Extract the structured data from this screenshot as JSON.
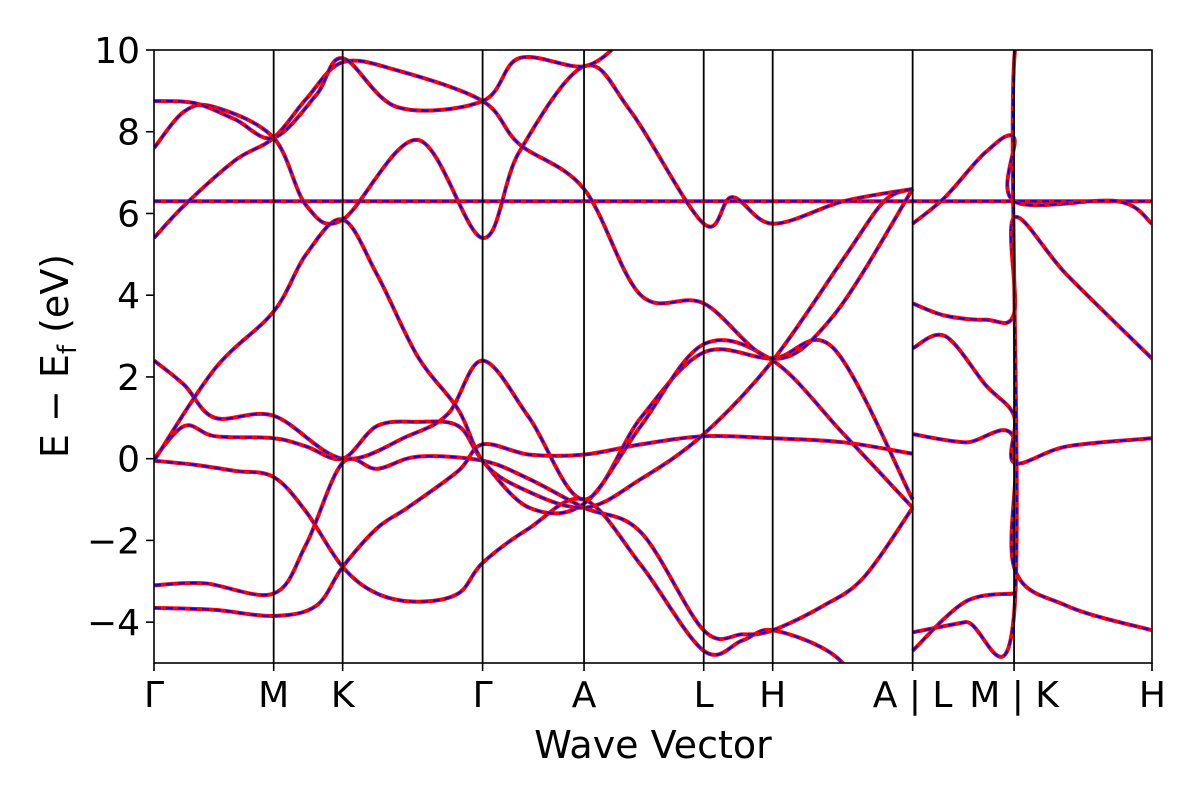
{
  "chart_data": {
    "type": "line",
    "title": "",
    "xlabel": "Wave Vector",
    "ylabel_main": "E − E",
    "ylabel_sub": "f",
    "ylabel_unit": " (eV)",
    "ylim": [
      -5,
      10
    ],
    "yticks": [
      -4,
      -2,
      0,
      2,
      4,
      6,
      8,
      10
    ],
    "ytick_labels": [
      "−4",
      "−2",
      "0",
      "2",
      "4",
      "6",
      "8",
      "10"
    ],
    "xticks": [
      0,
      1.18,
      1.86,
      3.24,
      4.24,
      5.42,
      6.1,
      7.48,
      8.48,
      9.84
    ],
    "xtick_labels": [
      "Γ",
      "M",
      "K",
      "Γ",
      "A",
      "L",
      "H",
      "A | L",
      "M | K",
      "H"
    ],
    "xlim": [
      0,
      9.84
    ],
    "grid": false,
    "legend": "none",
    "colors": {
      "primary": "#ff0000",
      "secondary": "#0000ff"
    },
    "series": [
      {
        "values": [
          [
            0,
            -0.05
          ],
          [
            0.4,
            -0.15
          ],
          [
            0.8,
            -0.3
          ],
          [
            1.18,
            -0.45
          ],
          [
            1.5,
            -1.3
          ],
          [
            1.86,
            -2.65
          ],
          [
            2.2,
            -3.3
          ],
          [
            2.6,
            -3.5
          ],
          [
            3.0,
            -3.3
          ],
          [
            3.24,
            -2.55
          ],
          [
            3.7,
            -1.7
          ],
          [
            4.24,
            -1.0
          ],
          [
            4.8,
            -2.6
          ],
          [
            5.42,
            -4.7
          ],
          [
            5.8,
            -4.45
          ],
          [
            6.1,
            -4.2
          ],
          [
            6.7,
            -4.8
          ],
          [
            7.1,
            -6.0
          ]
        ]
      },
      {
        "values": [
          [
            0,
            -3.1
          ],
          [
            0.5,
            -3.05
          ],
          [
            1.18,
            -3.3
          ],
          [
            1.5,
            -2.1
          ],
          [
            1.86,
            -0.1
          ],
          [
            2.2,
            -0.25
          ],
          [
            2.6,
            0.05
          ],
          [
            3.24,
            -0.05
          ],
          [
            3.7,
            -0.5
          ],
          [
            4.24,
            -1.2
          ],
          [
            4.8,
            -1.8
          ],
          [
            5.42,
            -4.2
          ],
          [
            5.8,
            -4.3
          ],
          [
            6.1,
            -4.2
          ],
          [
            6.6,
            -3.6
          ],
          [
            7.0,
            -2.9
          ],
          [
            7.48,
            -1.2
          ]
        ]
      },
      {
        "values": [
          [
            0,
            -3.65
          ],
          [
            0.6,
            -3.7
          ],
          [
            1.18,
            -3.85
          ],
          [
            1.6,
            -3.6
          ],
          [
            1.86,
            -2.65
          ],
          [
            2.2,
            -1.7
          ],
          [
            2.5,
            -1.2
          ],
          [
            3.0,
            -0.3
          ],
          [
            3.24,
            0.35
          ],
          [
            3.7,
            0.1
          ],
          [
            4.24,
            0.1
          ],
          [
            4.8,
            0.35
          ],
          [
            5.42,
            0.55
          ],
          [
            6.1,
            0.5
          ],
          [
            6.8,
            0.4
          ],
          [
            7.48,
            0.12
          ]
        ]
      },
      {
        "values": [
          [
            0,
            2.4
          ],
          [
            0.3,
            1.8
          ],
          [
            0.6,
            1.0
          ],
          [
            1.18,
            1.05
          ],
          [
            1.86,
            0.0
          ],
          [
            2.5,
            0.55
          ],
          [
            2.9,
            1.1
          ],
          [
            3.24,
            2.4
          ],
          [
            3.7,
            1.0
          ],
          [
            4.24,
            -1.0
          ],
          [
            4.8,
            1.0
          ],
          [
            5.42,
            2.6
          ],
          [
            6.1,
            2.45
          ],
          [
            6.7,
            2.7
          ],
          [
            7.48,
            -1.0
          ]
        ]
      },
      {
        "values": [
          [
            0,
            0.0
          ],
          [
            0.3,
            0.8
          ],
          [
            0.6,
            0.55
          ],
          [
            1.18,
            0.5
          ],
          [
            1.5,
            0.3
          ],
          [
            1.86,
            0.0
          ],
          [
            2.2,
            0.8
          ],
          [
            2.6,
            0.9
          ],
          [
            3.0,
            0.8
          ],
          [
            3.24,
            -0.05
          ],
          [
            3.7,
            -1.2
          ],
          [
            4.24,
            -1.1
          ],
          [
            4.8,
            0.8
          ],
          [
            5.42,
            2.8
          ],
          [
            6.1,
            2.4
          ],
          [
            6.8,
            0.6
          ],
          [
            7.48,
            -1.2
          ]
        ]
      },
      {
        "values": [
          [
            0,
            -0.05
          ],
          [
            0.6,
            2.2
          ],
          [
            1.18,
            3.6
          ],
          [
            1.5,
            5.0
          ],
          [
            1.86,
            5.85
          ],
          [
            2.2,
            4.5
          ],
          [
            2.6,
            2.5
          ],
          [
            3.0,
            1.2
          ],
          [
            3.24,
            -0.05
          ],
          [
            3.6,
            -0.7
          ],
          [
            4.24,
            -1.2
          ],
          [
            4.8,
            -0.5
          ],
          [
            5.42,
            0.6
          ],
          [
            6.1,
            2.4
          ],
          [
            6.8,
            4.9
          ],
          [
            7.2,
            6.3
          ],
          [
            7.48,
            6.6
          ]
        ]
      },
      {
        "values": [
          [
            0,
            6.3
          ],
          [
            0.5,
            6.3
          ],
          [
            1.18,
            6.3
          ],
          [
            1.86,
            6.3
          ],
          [
            2.6,
            6.3
          ],
          [
            3.24,
            6.3
          ],
          [
            4.24,
            6.3
          ],
          [
            5.42,
            6.3
          ],
          [
            6.1,
            6.3
          ],
          [
            7.48,
            6.3
          ],
          [
            8.48,
            6.3
          ],
          [
            9.84,
            6.3
          ]
        ]
      },
      {
        "values": [
          [
            0,
            5.4
          ],
          [
            0.3,
            6.2
          ],
          [
            0.8,
            7.3
          ],
          [
            1.18,
            7.85
          ],
          [
            1.5,
            8.8
          ],
          [
            1.86,
            9.7
          ],
          [
            2.4,
            9.5
          ],
          [
            3.24,
            8.75
          ],
          [
            3.6,
            7.7
          ],
          [
            4.24,
            6.6
          ],
          [
            4.8,
            4.0
          ],
          [
            5.42,
            3.8
          ],
          [
            6.1,
            2.45
          ],
          [
            6.7,
            3.5
          ],
          [
            7.48,
            6.6
          ]
        ]
      },
      {
        "values": [
          [
            0,
            7.6
          ],
          [
            0.3,
            8.5
          ],
          [
            0.6,
            8.6
          ],
          [
            1.18,
            7.85
          ],
          [
            1.5,
            6.2
          ],
          [
            1.86,
            5.85
          ],
          [
            2.6,
            7.8
          ],
          [
            3.24,
            5.4
          ],
          [
            3.6,
            7.5
          ],
          [
            4.24,
            9.6
          ],
          [
            4.7,
            8.5
          ],
          [
            5.42,
            5.75
          ],
          [
            5.7,
            6.4
          ],
          [
            6.1,
            5.75
          ],
          [
            6.8,
            6.3
          ],
          [
            7.48,
            6.6
          ]
        ]
      },
      {
        "values": [
          [
            0,
            8.75
          ],
          [
            0.4,
            8.7
          ],
          [
            0.8,
            8.3
          ],
          [
            1.18,
            7.85
          ],
          [
            1.6,
            8.9
          ],
          [
            1.86,
            9.8
          ],
          [
            2.4,
            8.6
          ],
          [
            3.24,
            8.75
          ],
          [
            3.6,
            9.8
          ],
          [
            4.24,
            9.6
          ],
          [
            4.6,
            10.2
          ]
        ]
      },
      {
        "values": [
          [
            7.48,
            3.8
          ],
          [
            7.8,
            3.5
          ],
          [
            8.2,
            3.4
          ],
          [
            8.48,
            3.55
          ],
          [
            8.48,
            5.9
          ],
          [
            9.0,
            4.5
          ],
          [
            9.84,
            2.45
          ]
        ]
      },
      {
        "values": [
          [
            7.48,
            2.7
          ],
          [
            7.8,
            3.0
          ],
          [
            8.2,
            1.8
          ],
          [
            8.48,
            1.05
          ],
          [
            8.48,
            -0.1
          ],
          [
            9.0,
            0.3
          ],
          [
            9.84,
            0.5
          ]
        ]
      },
      {
        "values": [
          [
            7.48,
            0.6
          ],
          [
            8.0,
            0.4
          ],
          [
            8.48,
            0.5
          ],
          [
            8.48,
            -2.65
          ],
          [
            9.0,
            -3.6
          ],
          [
            9.84,
            -4.2
          ]
        ]
      },
      {
        "values": [
          [
            7.48,
            -4.25
          ],
          [
            8.0,
            -4.0
          ],
          [
            8.48,
            -3.8
          ],
          [
            8.48,
            9.7
          ],
          [
            8.8,
            10.2
          ]
        ]
      },
      {
        "values": [
          [
            7.48,
            5.75
          ],
          [
            7.8,
            6.4
          ],
          [
            8.2,
            7.5
          ],
          [
            8.48,
            7.85
          ],
          [
            8.48,
            6.3
          ],
          [
            9.5,
            6.3
          ],
          [
            9.84,
            5.75
          ]
        ]
      },
      {
        "values": [
          [
            7.48,
            -4.7
          ],
          [
            8.0,
            -3.5
          ],
          [
            8.48,
            -3.3
          ]
        ]
      }
    ]
  }
}
